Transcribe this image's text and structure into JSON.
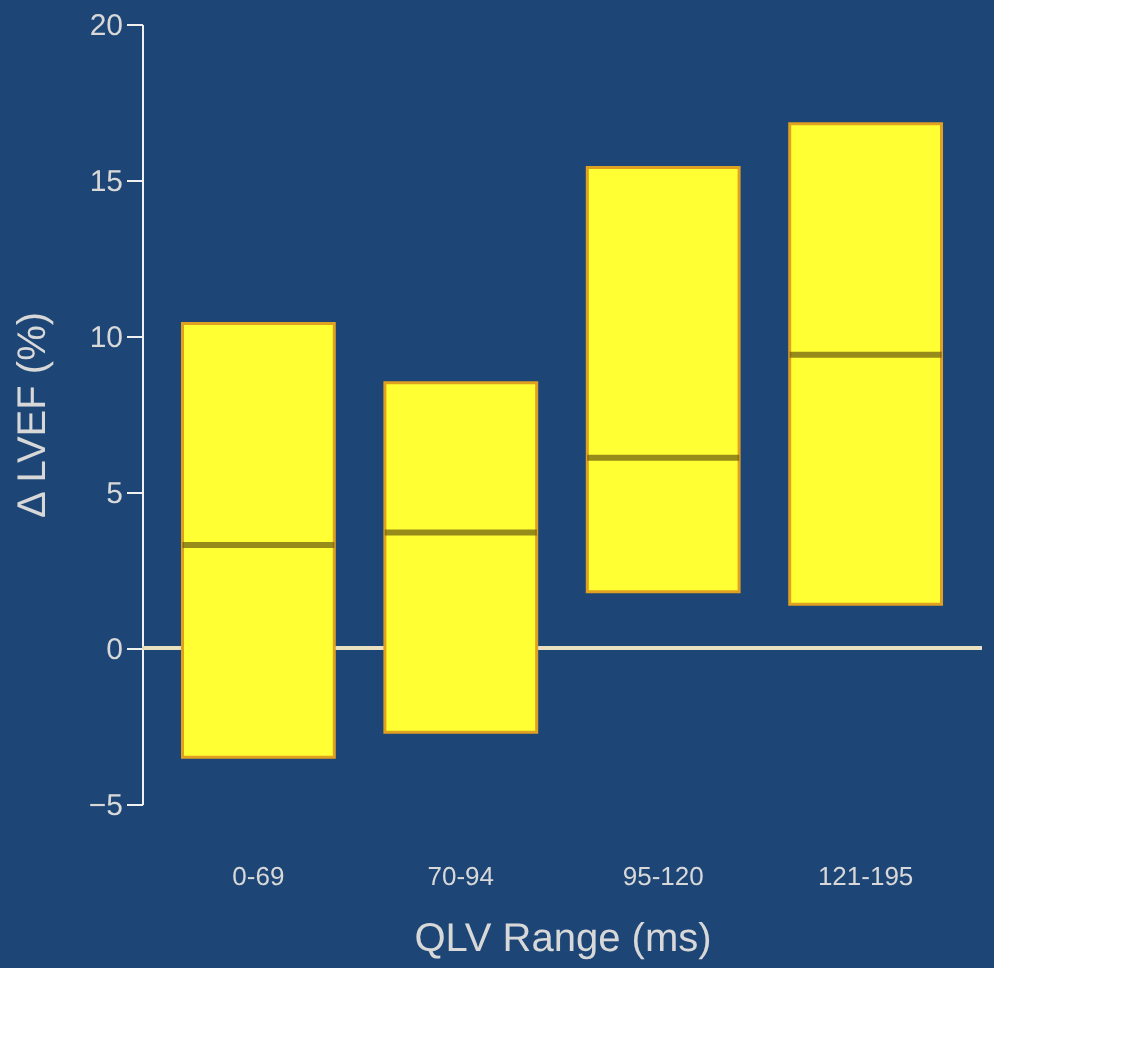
{
  "chart_data": {
    "type": "box",
    "xlabel": "QLV Range (ms)",
    "ylabel": "Δ LVEF (%)",
    "categories": [
      "0-69",
      "70-94",
      "95-120",
      "121-195"
    ],
    "series": [
      {
        "color": "#ffff33",
        "boxes": [
          {
            "low": -3.5,
            "q1": -3.5,
            "median": 3.3,
            "q3": 10.4,
            "high": 10.4
          },
          {
            "low": -2.7,
            "q1": -2.7,
            "median": 3.7,
            "q3": 8.5,
            "high": 8.5
          },
          {
            "low": 1.8,
            "q1": 1.8,
            "median": 6.1,
            "q3": 15.4,
            "high": 15.4
          },
          {
            "low": 1.4,
            "q1": 1.4,
            "median": 9.4,
            "q3": 16.8,
            "high": 16.8
          }
        ]
      }
    ],
    "ylim": [
      -5,
      20
    ],
    "yticks": [
      -5,
      0,
      5,
      10,
      15,
      20
    ],
    "ref_lines": [
      {
        "axis": "y",
        "value": 0,
        "color": "#e8e0c0"
      }
    ],
    "grid": false
  }
}
